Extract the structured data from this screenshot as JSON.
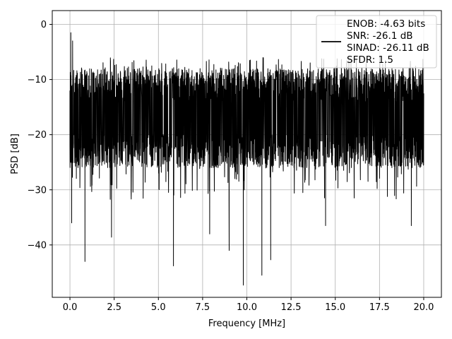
{
  "chart_data": {
    "type": "line",
    "xlabel": "Frequency [MHz]",
    "ylabel": "PSD [dB]",
    "xlim": [
      -1.0,
      21.0
    ],
    "ylim": [
      -49.5,
      2.5
    ],
    "xticks": [
      0.0,
      2.5,
      5.0,
      7.5,
      10.0,
      12.5,
      15.0,
      17.5,
      20.0
    ],
    "xtick_labels": [
      "0.0",
      "2.5",
      "5.0",
      "7.5",
      "10.0",
      "12.5",
      "15.0",
      "17.5",
      "20.0"
    ],
    "yticks": [
      0,
      -10,
      -20,
      -30,
      -40
    ],
    "ytick_labels": [
      "0",
      "−10",
      "−20",
      "−30",
      "−40"
    ],
    "grid": true,
    "legend_position": "top-right",
    "series": [
      {
        "name": "ENOB: -4.63 bits\nSNR: -26.1 dB\nSINAD: -26.11 dB\nSFDR: 1.5",
        "color": "#000000",
        "points_estimated": [
          [
            0.0,
            -12.0
          ],
          [
            0.05,
            -1.5
          ],
          [
            0.1,
            -36.0
          ],
          [
            0.15,
            -3.0
          ],
          [
            0.85,
            -43.0
          ],
          [
            2.35,
            -38.6
          ],
          [
            5.85,
            -43.8
          ],
          [
            7.9,
            -38.0
          ],
          [
            9.0,
            -41.0
          ],
          [
            9.8,
            -47.3
          ],
          [
            10.85,
            -45.5
          ],
          [
            11.35,
            -42.7
          ],
          [
            14.45,
            -36.5
          ],
          [
            19.3,
            -36.5
          ]
        ],
        "noise_band": {
          "center": -17.0,
          "spread": 7.5,
          "x_start": 0.0,
          "x_end": 20.0
        }
      }
    ],
    "legend_lines": [
      "ENOB: -4.63 bits",
      "SNR: -26.1 dB",
      "SINAD: -26.11 dB",
      "SFDR: 1.5"
    ]
  }
}
